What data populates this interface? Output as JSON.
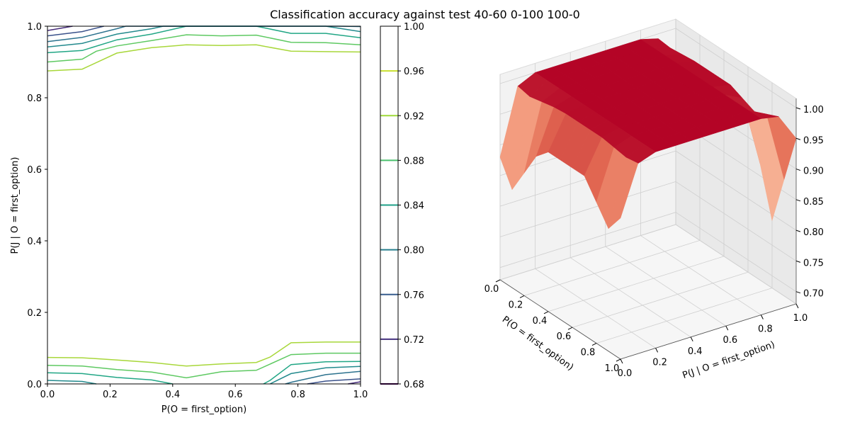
{
  "figure": {
    "title": "Classification accuracy against test 40-60 0-100 100-0"
  },
  "chart_data": [
    {
      "type": "contour",
      "xlabel": "P(O = first_option)",
      "ylabel": "P(J | O = first_option)",
      "xlim": [
        0,
        1
      ],
      "ylim": [
        0,
        1
      ],
      "xticks": [
        "0.0",
        "0.2",
        "0.4",
        "0.6",
        "0.8",
        "1.0"
      ],
      "yticks": [
        "0.0",
        "0.2",
        "0.4",
        "0.6",
        "0.8",
        "1.0"
      ],
      "grid": false,
      "colorbar": {
        "ticks": [
          "0.68",
          "0.72",
          "0.76",
          "0.80",
          "0.84",
          "0.88",
          "0.92",
          "0.96",
          "1.00"
        ],
        "levels": [
          0.68,
          0.72,
          0.76,
          0.8,
          0.84,
          0.88,
          0.92,
          0.96,
          1.0
        ],
        "colors": [
          "#440154",
          "#46337f",
          "#365c8d",
          "#277f8e",
          "#1fa188",
          "#4ac16d",
          "#9fda3a",
          "#c8df2f",
          "#fde725"
        ]
      },
      "contours": [
        {
          "level": 0.96,
          "color": "#a8d73a",
          "points": [
            [
              0,
              0.875
            ],
            [
              0.111,
              0.88
            ],
            [
              0.222,
              0.925
            ],
            [
              0.333,
              0.94
            ],
            [
              0.444,
              0.948
            ],
            [
              0.556,
              0.946
            ],
            [
              0.667,
              0.948
            ],
            [
              0.778,
              0.93
            ],
            [
              0.889,
              0.929
            ],
            [
              1,
              0.928
            ]
          ]
        },
        {
          "level": 0.92,
          "color": "#5ec962",
          "points": [
            [
              0,
              0.9
            ],
            [
              0.111,
              0.908
            ],
            [
              0.156,
              0.93
            ],
            [
              0.222,
              0.945
            ],
            [
              0.333,
              0.96
            ],
            [
              0.444,
              0.976
            ],
            [
              0.556,
              0.973
            ],
            [
              0.667,
              0.975
            ],
            [
              0.778,
              0.955
            ],
            [
              0.889,
              0.954
            ],
            [
              1,
              0.948
            ]
          ]
        },
        {
          "level": 0.88,
          "color": "#21a685",
          "points": [
            [
              0,
              0.926
            ],
            [
              0.111,
              0.932
            ],
            [
              0.222,
              0.962
            ],
            [
              0.333,
              0.978
            ],
            [
              0.444,
              1.0
            ],
            [
              0.667,
              1.0
            ],
            [
              0.778,
              0.98
            ],
            [
              0.889,
              0.98
            ],
            [
              1,
              0.968
            ]
          ]
        },
        {
          "level": 0.84,
          "color": "#238a8d",
          "points": [
            [
              0,
              0.942
            ],
            [
              0.111,
              0.952
            ],
            [
              0.222,
              0.978
            ],
            [
              0.333,
              0.993
            ],
            [
              0.37,
              1.0
            ],
            [
              0.667,
              1.0
            ],
            [
              0.778,
              1.0
            ],
            [
              0.889,
              1.0
            ],
            [
              1,
              0.985
            ]
          ]
        },
        {
          "level": 0.8,
          "color": "#2c728e",
          "points": [
            [
              0,
              0.957
            ],
            [
              0.111,
              0.969
            ],
            [
              0.222,
              0.993
            ],
            [
              0.25,
              1.0
            ],
            [
              0.556,
              1.0
            ],
            [
              0.667,
              1.0
            ],
            [
              0.778,
              1.0
            ],
            [
              0.93,
              1.0
            ],
            [
              1,
              0.999
            ]
          ]
        },
        {
          "level": 0.76,
          "color": "#3b528b",
          "points": [
            [
              0,
              0.973
            ],
            [
              0.111,
              0.985
            ],
            [
              0.18,
              1.0
            ]
          ]
        },
        {
          "level": 0.72,
          "color": "#472d7b",
          "points": [
            [
              0,
              0.988
            ],
            [
              0.08,
              1.0
            ]
          ]
        },
        {
          "level": 0.96,
          "color": "#a8d73a",
          "points": [
            [
              0,
              0.074
            ],
            [
              0.111,
              0.073
            ],
            [
              0.222,
              0.067
            ],
            [
              0.333,
              0.06
            ],
            [
              0.444,
              0.05
            ],
            [
              0.556,
              0.056
            ],
            [
              0.667,
              0.06
            ],
            [
              0.711,
              0.075
            ],
            [
              0.778,
              0.115
            ],
            [
              0.889,
              0.117
            ],
            [
              1,
              0.117
            ]
          ]
        },
        {
          "level": 0.92,
          "color": "#5ec962",
          "points": [
            [
              0,
              0.052
            ],
            [
              0.111,
              0.05
            ],
            [
              0.222,
              0.04
            ],
            [
              0.333,
              0.033
            ],
            [
              0.444,
              0.017
            ],
            [
              0.556,
              0.034
            ],
            [
              0.667,
              0.038
            ],
            [
              0.778,
              0.082
            ],
            [
              0.889,
              0.086
            ],
            [
              1,
              0.086
            ]
          ]
        },
        {
          "level": 0.88,
          "color": "#21a685",
          "points": [
            [
              0,
              0.031
            ],
            [
              0.111,
              0.029
            ],
            [
              0.222,
              0.018
            ],
            [
              0.333,
              0.011
            ],
            [
              0.4,
              0.0
            ]
          ]
        },
        {
          "level": 0.88,
          "color": "#21a685",
          "points": [
            [
              0.69,
              0.0
            ],
            [
              0.711,
              0.01
            ],
            [
              0.778,
              0.054
            ],
            [
              0.889,
              0.062
            ],
            [
              1,
              0.063
            ]
          ]
        },
        {
          "level": 0.84,
          "color": "#238a8d",
          "points": [
            [
              0,
              0.01
            ],
            [
              0.111,
              0.007
            ],
            [
              0.156,
              0.0
            ]
          ]
        },
        {
          "level": 0.84,
          "color": "#238a8d",
          "points": [
            [
              0.711,
              0.0
            ],
            [
              0.778,
              0.029
            ],
            [
              0.889,
              0.045
            ],
            [
              1,
              0.049
            ]
          ]
        },
        {
          "level": 0.8,
          "color": "#2c728e",
          "points": [
            [
              0.76,
              0.0
            ],
            [
              0.78,
              0.005
            ],
            [
              0.889,
              0.026
            ],
            [
              1,
              0.035
            ]
          ]
        },
        {
          "level": 0.76,
          "color": "#3b528b",
          "points": [
            [
              0.83,
              0.0
            ],
            [
              0.889,
              0.008
            ],
            [
              1,
              0.014
            ]
          ]
        },
        {
          "level": 0.72,
          "color": "#472d7b",
          "points": [
            [
              0.96,
              0.0
            ],
            [
              1,
              0.006
            ]
          ]
        }
      ]
    },
    {
      "type": "surface3d",
      "xlabel": "P(O = first_option)",
      "ylabel": "P(J | O = first_option)",
      "xticks": [
        "0.0",
        "0.2",
        "0.4",
        "0.6",
        "0.8",
        "1.0"
      ],
      "yticks": [
        "0.0",
        "0.2",
        "0.4",
        "0.6",
        "0.8",
        "1.0"
      ],
      "zticks": [
        "0.70",
        "0.75",
        "0.80",
        "0.85",
        "0.90",
        "0.95",
        "1.00"
      ],
      "zlim": [
        0.68,
        1.0
      ],
      "colormap": [
        "#3b4cc0",
        "#7b9ff9",
        "#c0d4f5",
        "#dddcdc",
        "#f2cbb7",
        "#f7a889",
        "#e26952",
        "#b40426"
      ]
    }
  ]
}
